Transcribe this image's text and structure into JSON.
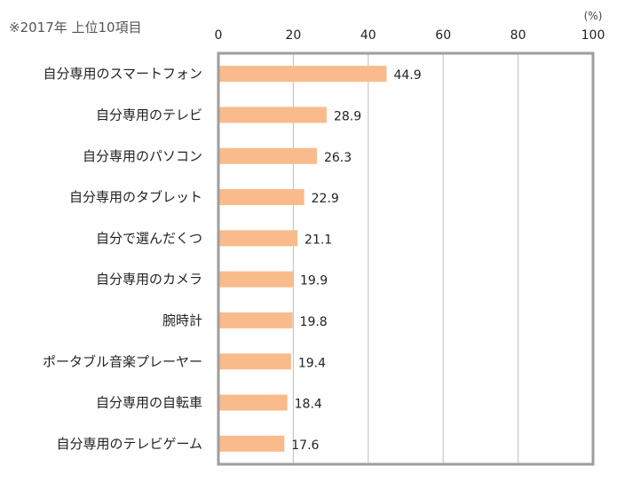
{
  "note": "※2017年 上位10項目",
  "chart_data": {
    "type": "bar",
    "orientation": "horizontal",
    "unit": "(%)",
    "xlim": [
      0,
      100
    ],
    "ticks": [
      0,
      20,
      40,
      60,
      80,
      100
    ],
    "grid": true,
    "colors": {
      "bar": "#F9BB8C",
      "grid": "#BDBDBD",
      "frame": "#9E9E9E"
    },
    "categories": [
      "自分専用のスマートフォン",
      "自分専用のテレビ",
      "自分専用のパソコン",
      "自分専用のタブレット",
      "自分で選んだくつ",
      "自分専用のカメラ",
      "腕時計",
      "ポータブル音楽プレーヤー",
      "自分専用の自転車",
      "自分専用のテレビゲーム"
    ],
    "values": [
      44.9,
      28.9,
      26.3,
      22.9,
      21.1,
      19.9,
      19.8,
      19.4,
      18.4,
      17.6
    ]
  }
}
